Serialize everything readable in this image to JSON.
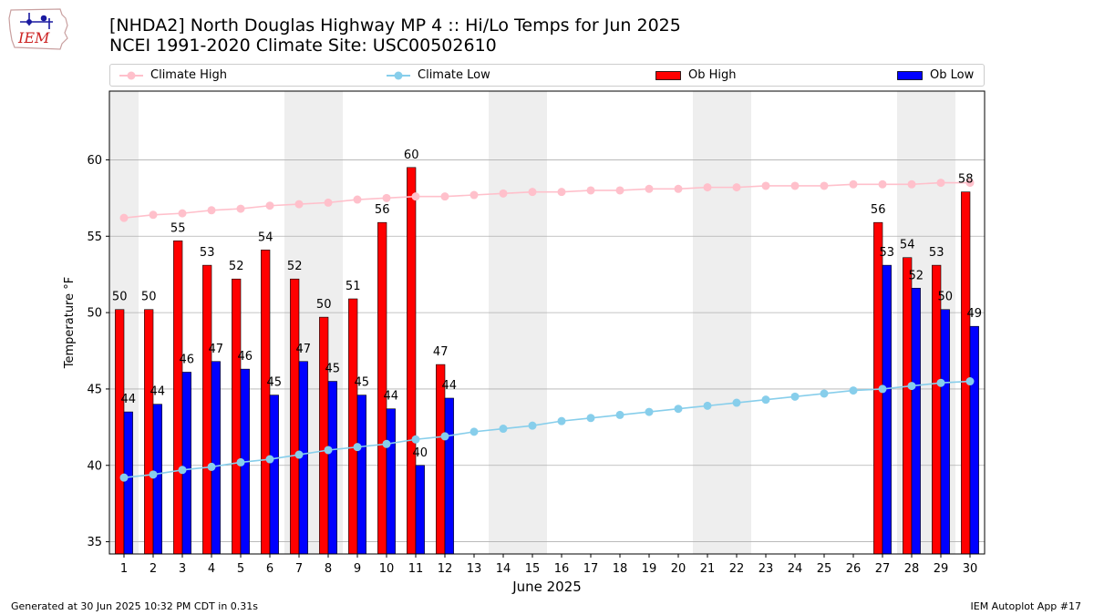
{
  "header": {
    "title": "[NHDA2] North Douglas Highway MP 4 :: Hi/Lo Temps for Jun 2025",
    "subtitle": "NCEI 1991-2020 Climate Site: USC00502610",
    "logo_text": "IEM"
  },
  "legend": {
    "climate_high": "Climate High",
    "climate_low": "Climate Low",
    "ob_high": "Ob High",
    "ob_low": "Ob Low"
  },
  "footer": {
    "generated": "Generated at 30 Jun 2025 10:32 PM CDT in 0.31s",
    "app": "IEM Autoplot App #17"
  },
  "colors": {
    "ob_high": "#ff0000",
    "ob_low": "#0000ff",
    "climate_high": "#ffc0cb",
    "climate_low": "#87ceeb",
    "weekend_band": "#eeeeee",
    "grid": "#b0b0b0"
  },
  "chart_data": {
    "type": "bar",
    "xlabel": "June 2025",
    "ylabel": "Temperature °F",
    "ylim": [
      34.2,
      64.5
    ],
    "yticks": [
      35,
      40,
      45,
      50,
      55,
      60
    ],
    "grid": "horizontal",
    "legend_position": "top",
    "days": [
      1,
      2,
      3,
      4,
      5,
      6,
      7,
      8,
      9,
      10,
      11,
      12,
      13,
      14,
      15,
      16,
      17,
      18,
      19,
      20,
      21,
      22,
      23,
      24,
      25,
      26,
      27,
      28,
      29,
      30
    ],
    "weekend_days": [
      1,
      7,
      8,
      14,
      15,
      21,
      22,
      28,
      29
    ],
    "series": [
      {
        "name": "Ob High",
        "kind": "bar",
        "values": [
          50.2,
          50.2,
          54.7,
          53.1,
          52.2,
          54.1,
          52.2,
          49.7,
          50.9,
          55.9,
          59.5,
          46.6,
          null,
          null,
          null,
          null,
          null,
          null,
          null,
          null,
          null,
          null,
          null,
          null,
          null,
          null,
          55.9,
          53.6,
          53.1,
          57.9
        ],
        "labels": [
          "50",
          "50",
          "55",
          "53",
          "52",
          "54",
          "52",
          "50",
          "51",
          "56",
          "60",
          "47",
          null,
          null,
          null,
          null,
          null,
          null,
          null,
          null,
          null,
          null,
          null,
          null,
          null,
          null,
          "56",
          "54",
          "53",
          "58"
        ]
      },
      {
        "name": "Ob Low",
        "kind": "bar",
        "values": [
          43.5,
          44.0,
          46.1,
          46.8,
          46.3,
          44.6,
          46.8,
          45.5,
          44.6,
          43.7,
          40.0,
          44.4,
          null,
          null,
          null,
          null,
          null,
          null,
          null,
          null,
          null,
          null,
          null,
          null,
          null,
          null,
          53.1,
          51.6,
          50.2,
          49.1
        ],
        "labels": [
          "44",
          "44",
          "46",
          "47",
          "46",
          "45",
          "47",
          "45",
          "45",
          "44",
          "40",
          "44",
          null,
          null,
          null,
          null,
          null,
          null,
          null,
          null,
          null,
          null,
          null,
          null,
          null,
          null,
          "53",
          "52",
          "50",
          "49"
        ]
      },
      {
        "name": "Climate High",
        "kind": "line",
        "values": [
          56.2,
          56.4,
          56.5,
          56.7,
          56.8,
          57.0,
          57.1,
          57.2,
          57.4,
          57.5,
          57.6,
          57.6,
          57.7,
          57.8,
          57.9,
          57.9,
          58.0,
          58.0,
          58.1,
          58.1,
          58.2,
          58.2,
          58.3,
          58.3,
          58.3,
          58.4,
          58.4,
          58.4,
          58.5,
          58.5
        ]
      },
      {
        "name": "Climate Low",
        "kind": "line",
        "values": [
          39.2,
          39.4,
          39.7,
          39.9,
          40.2,
          40.4,
          40.7,
          41.0,
          41.2,
          41.4,
          41.7,
          41.9,
          42.2,
          42.4,
          42.6,
          42.9,
          43.1,
          43.3,
          43.5,
          43.7,
          43.9,
          44.1,
          44.3,
          44.5,
          44.7,
          44.9,
          45.0,
          45.2,
          45.4,
          45.5
        ]
      }
    ]
  }
}
